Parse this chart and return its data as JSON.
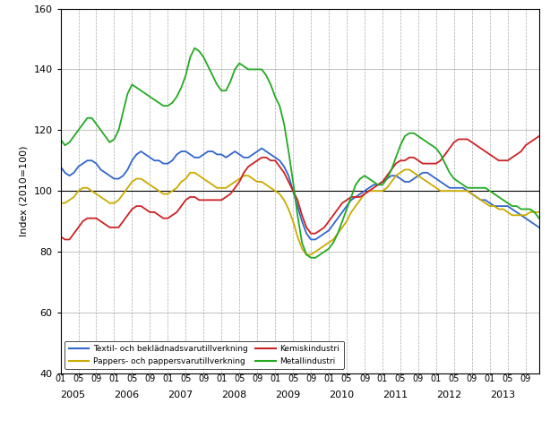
{
  "title": "",
  "ylabel": "Index (2010=100)",
  "ylim": [
    40,
    160
  ],
  "yticks": [
    40,
    60,
    80,
    100,
    120,
    140,
    160
  ],
  "bg_color": "#ffffff",
  "series": {
    "textil": {
      "label": "Textil- och beklädnadsvarutillverkning",
      "color": "#3366cc",
      "values": [
        108,
        106,
        105,
        106,
        108,
        109,
        110,
        110,
        109,
        107,
        106,
        105,
        104,
        104,
        105,
        107,
        110,
        112,
        113,
        112,
        111,
        110,
        110,
        109,
        109,
        110,
        112,
        113,
        113,
        112,
        111,
        111,
        112,
        113,
        113,
        112,
        112,
        111,
        112,
        113,
        112,
        111,
        111,
        112,
        113,
        114,
        113,
        112,
        111,
        110,
        108,
        105,
        100,
        95,
        90,
        86,
        84,
        84,
        85,
        86,
        87,
        89,
        91,
        93,
        95,
        97,
        98,
        99,
        100,
        101,
        102,
        102,
        103,
        104,
        105,
        105,
        104,
        103,
        103,
        104,
        105,
        106,
        106,
        105,
        104,
        103,
        102,
        101,
        101,
        101,
        101,
        100,
        99,
        98,
        97,
        97,
        96,
        95,
        95,
        95,
        95,
        94,
        93,
        92,
        91,
        90,
        89,
        88
      ]
    },
    "pappers": {
      "label": "Pappers- och pappersvarutillverkning",
      "color": "#ccaa00",
      "values": [
        96,
        96,
        97,
        98,
        100,
        101,
        101,
        100,
        99,
        98,
        97,
        96,
        96,
        97,
        99,
        101,
        103,
        104,
        104,
        103,
        102,
        101,
        100,
        99,
        99,
        100,
        101,
        103,
        104,
        106,
        106,
        105,
        104,
        103,
        102,
        101,
        101,
        101,
        102,
        103,
        104,
        105,
        105,
        104,
        103,
        103,
        102,
        101,
        100,
        99,
        97,
        94,
        90,
        85,
        81,
        79,
        79,
        80,
        81,
        82,
        83,
        84,
        86,
        88,
        90,
        93,
        95,
        97,
        99,
        100,
        100,
        100,
        100,
        101,
        103,
        105,
        106,
        107,
        107,
        106,
        105,
        104,
        103,
        102,
        101,
        100,
        100,
        100,
        100,
        100,
        100,
        100,
        99,
        98,
        97,
        96,
        95,
        95,
        94,
        94,
        93,
        92,
        92,
        92,
        92,
        93,
        93,
        93
      ]
    },
    "kemisk": {
      "label": "Kemiskindustri",
      "color": "#cc2222",
      "values": [
        85,
        84,
        84,
        86,
        88,
        90,
        91,
        91,
        91,
        90,
        89,
        88,
        88,
        88,
        90,
        92,
        94,
        95,
        95,
        94,
        93,
        93,
        92,
        91,
        91,
        92,
        93,
        95,
        97,
        98,
        98,
        97,
        97,
        97,
        97,
        97,
        97,
        98,
        99,
        101,
        103,
        106,
        108,
        109,
        110,
        111,
        111,
        110,
        110,
        108,
        106,
        103,
        100,
        97,
        92,
        88,
        86,
        86,
        87,
        88,
        90,
        92,
        94,
        96,
        97,
        98,
        98,
        98,
        99,
        100,
        101,
        102,
        103,
        105,
        107,
        109,
        110,
        110,
        111,
        111,
        110,
        109,
        109,
        109,
        109,
        110,
        112,
        114,
        116,
        117,
        117,
        117,
        116,
        115,
        114,
        113,
        112,
        111,
        110,
        110,
        110,
        111,
        112,
        113,
        115,
        116,
        117,
        118
      ]
    },
    "metall": {
      "label": "Metallindustri",
      "color": "#22aa22",
      "values": [
        117,
        115,
        116,
        118,
        120,
        122,
        124,
        124,
        122,
        120,
        118,
        116,
        117,
        120,
        126,
        132,
        135,
        134,
        133,
        132,
        131,
        130,
        129,
        128,
        128,
        129,
        131,
        134,
        138,
        144,
        147,
        146,
        144,
        141,
        138,
        135,
        133,
        133,
        136,
        140,
        142,
        141,
        140,
        140,
        140,
        140,
        138,
        135,
        131,
        128,
        122,
        113,
        103,
        92,
        83,
        79,
        78,
        78,
        79,
        80,
        81,
        83,
        86,
        90,
        94,
        98,
        102,
        104,
        105,
        104,
        103,
        102,
        102,
        104,
        107,
        111,
        115,
        118,
        119,
        119,
        118,
        117,
        116,
        115,
        114,
        112,
        109,
        106,
        104,
        103,
        102,
        101,
        101,
        101,
        101,
        101,
        100,
        99,
        98,
        97,
        96,
        95,
        95,
        94,
        94,
        94,
        93,
        91
      ]
    }
  },
  "year_labels": [
    "2005",
    "2006",
    "2007",
    "2008",
    "2009",
    "2010",
    "2011",
    "2012",
    "2013"
  ]
}
